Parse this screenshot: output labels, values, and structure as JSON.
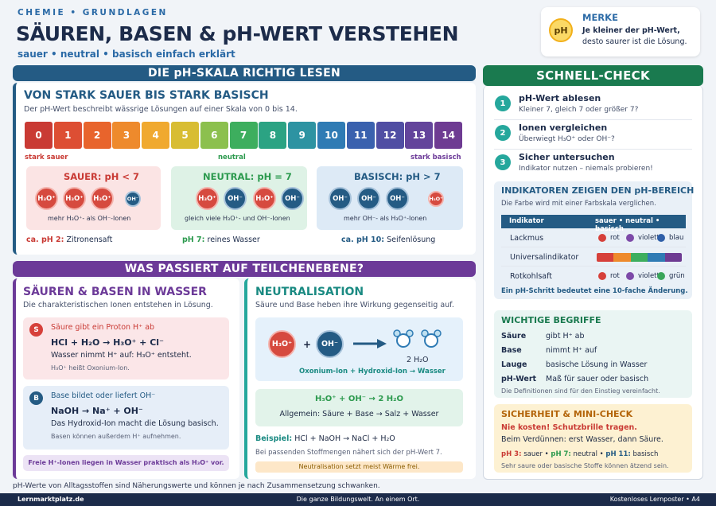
{
  "header": {
    "kicker": "CHEMIE • GRUNDLAGEN",
    "title": "SÄUREN, BASEN & pH-WERT VERSTEHEN",
    "subtitle": "sauer • neutral • basisch einfach erklärt"
  },
  "merke": {
    "badge": "pH",
    "title": "MERKE",
    "line1": "Je kleiner der pH-Wert,",
    "line2": "desto saurer ist die Lösung."
  },
  "section1": {
    "banner": "DIE pH-SKALA RICHTIG LESEN",
    "title": "VON STARK SAUER BIS STARK BASISCH",
    "desc": "Der pH-Wert beschreibt wässrige Lösungen auf einer Skala von 0 bis 14.",
    "scale": [
      {
        "value": "0",
        "color": "#c93a34"
      },
      {
        "value": "1",
        "color": "#dd4e33"
      },
      {
        "value": "2",
        "color": "#e8642c"
      },
      {
        "value": "3",
        "color": "#ee8a2c"
      },
      {
        "value": "4",
        "color": "#f0a92f"
      },
      {
        "value": "5",
        "color": "#d8bd33"
      },
      {
        "value": "6",
        "color": "#8cc04e"
      },
      {
        "value": "7",
        "color": "#3dae5e"
      },
      {
        "value": "8",
        "color": "#2ba383"
      },
      {
        "value": "9",
        "color": "#2d93a2"
      },
      {
        "value": "10",
        "color": "#2f7bb4"
      },
      {
        "value": "11",
        "color": "#3a61ae"
      },
      {
        "value": "12",
        "color": "#504ea3"
      },
      {
        "value": "13",
        "color": "#63449b"
      },
      {
        "value": "14",
        "color": "#6e3b92"
      }
    ],
    "label_acid": "stark sauer",
    "label_neutral": "neutral",
    "label_basic": "stark basisch",
    "acid": {
      "title": "SAUER: pH < 7",
      "ions": [
        "H₃O⁺",
        "H₃O⁺",
        "H₃O⁺",
        "OH⁻"
      ],
      "caption": "mehr H₃O⁺- als OH⁻-Ionen",
      "example_value": "ca. pH 2:",
      "example_text": "Zitronensaft"
    },
    "neutral": {
      "title": "NEUTRAL: pH = 7",
      "ions": [
        "H₃O⁺",
        "OH⁻",
        "H₃O⁺",
        "OH⁻"
      ],
      "caption": "gleich viele H₃O⁺- und OH⁻-Ionen",
      "example_value": "pH 7:",
      "example_text": "reines Wasser"
    },
    "basic": {
      "title": "BASISCH: pH > 7",
      "ions": [
        "OH⁻",
        "OH⁻",
        "OH⁻",
        "H₃O⁺"
      ],
      "caption": "mehr OH⁻- als H₃O⁺-Ionen",
      "example_value": "ca. pH 10:",
      "example_text": "Seifenlösung"
    }
  },
  "section2": {
    "banner": "WAS PASSIERT AUF TEILCHENEBENE?",
    "left": {
      "title": "SÄUREN & BASEN IN WASSER",
      "desc": "Die charakteristischen Ionen entstehen in Lösung.",
      "acid": {
        "letter": "S",
        "title": "Säure gibt ein Proton H⁺ ab",
        "eq": "HCl + H₂O → H₃O⁺ + Cl⁻",
        "text": "Wasser nimmt H⁺ auf: H₃O⁺ entsteht.",
        "note": "H₃O⁺ heißt Oxonium-Ion."
      },
      "base": {
        "letter": "B",
        "title": "Base bildet oder liefert OH⁻",
        "eq": "NaOH → Na⁺ + OH⁻",
        "text": "Das Hydroxid-Ion macht die Lösung basisch.",
        "note": "Basen können außerdem H⁺ aufnehmen."
      },
      "footer": "Freie H⁺-Ionen liegen in Wasser praktisch als H₃O⁺ vor."
    },
    "right": {
      "title": "NEUTRALISATION",
      "desc": "Säure und Base heben ihre Wirkung gegenseitig auf.",
      "ion1": "H₃O⁺",
      "plus": "+",
      "ion2": "OH⁻",
      "water": "2 H₂O",
      "caption": "Oxonium-Ion + Hydroxid-Ion → Wasser",
      "eq": "H₃O⁺ + OH⁻ → 2 H₂O",
      "general": "Allgemein: Säure + Base → Salz + Wasser",
      "example_label": "Beispiel:",
      "example": "HCl + NaOH → NaCl + H₂O",
      "note": "Bei passenden Stoffmengen nähert sich der pH-Wert 7.",
      "warning": "Neutralisation setzt meist Wärme frei."
    }
  },
  "quick": {
    "banner": "SCHNELL-CHECK",
    "items": [
      {
        "n": "1",
        "title": "pH-Wert ablesen",
        "desc": "Kleiner 7, gleich 7 oder größer 7?"
      },
      {
        "n": "2",
        "title": "Ionen vergleichen",
        "desc": "Überwiegt H₃O⁺ oder OH⁻?"
      },
      {
        "n": "3",
        "title": "Sicher untersuchen",
        "desc": "Indikator nutzen – niemals probieren!"
      }
    ],
    "indicators": {
      "title": "INDIKATOREN ZEIGEN DEN pH-BEREICH",
      "desc": "Die Farbe wird mit einer Farbskala verglichen.",
      "col1": "Indikator",
      "col2": "sauer • neutral • basisch",
      "rows": [
        {
          "name": "Lackmus",
          "c1": "rot",
          "c2": "violett",
          "c3": "blau",
          "k1": "#d6403a",
          "k2": "#7d4aa8",
          "k3": "#2f5fa8"
        },
        {
          "name": "Universalindikator"
        },
        {
          "name": "Rotkohlsaft",
          "c1": "rot",
          "c2": "violett",
          "c3": "grün",
          "k1": "#d6403a",
          "k2": "#7d4aa8",
          "k3": "#3aa55a"
        }
      ],
      "universal": [
        "#d6403a",
        "#ee8a2c",
        "#3dae5e",
        "#2f7bb4",
        "#6e3b92"
      ],
      "note": "Ein pH-Schritt bedeutet eine 10-fache Änderung."
    },
    "terms": {
      "title": "WICHTIGE BEGRIFFE",
      "rows": [
        {
          "k": "Säure",
          "v": "gibt H⁺ ab"
        },
        {
          "k": "Base",
          "v": "nimmt H⁺ auf"
        },
        {
          "k": "Lauge",
          "v": "basische Lösung in Wasser"
        },
        {
          "k": "pH-Wert",
          "v": "Maß für sauer oder basisch"
        }
      ],
      "note": "Die Definitionen sind für den Einstieg vereinfacht."
    },
    "safety": {
      "title": "SICHERHEIT & MINI-CHECK",
      "warn": "Nie kosten! Schutzbrille tragen.",
      "line": "Beim Verdünnen: erst Wasser, dann Säure.",
      "ph3": "pH 3:",
      "ph3t": "sauer •",
      "ph7": "pH 7:",
      "ph7t": "neutral •",
      "ph11": "pH 11:",
      "ph11t": "basisch",
      "note": "Sehr saure oder basische Stoffe können ätzend sein."
    }
  },
  "note": "pH-Werte von Alltagsstoffen sind Näherungswerte und können je nach Zusammensetzung schwanken.",
  "footer": {
    "left": "Lernmarktplatz.de",
    "center": "Die ganze Bildungswelt. An einem Ort.",
    "right": "Kostenloses Lernposter • A4"
  }
}
